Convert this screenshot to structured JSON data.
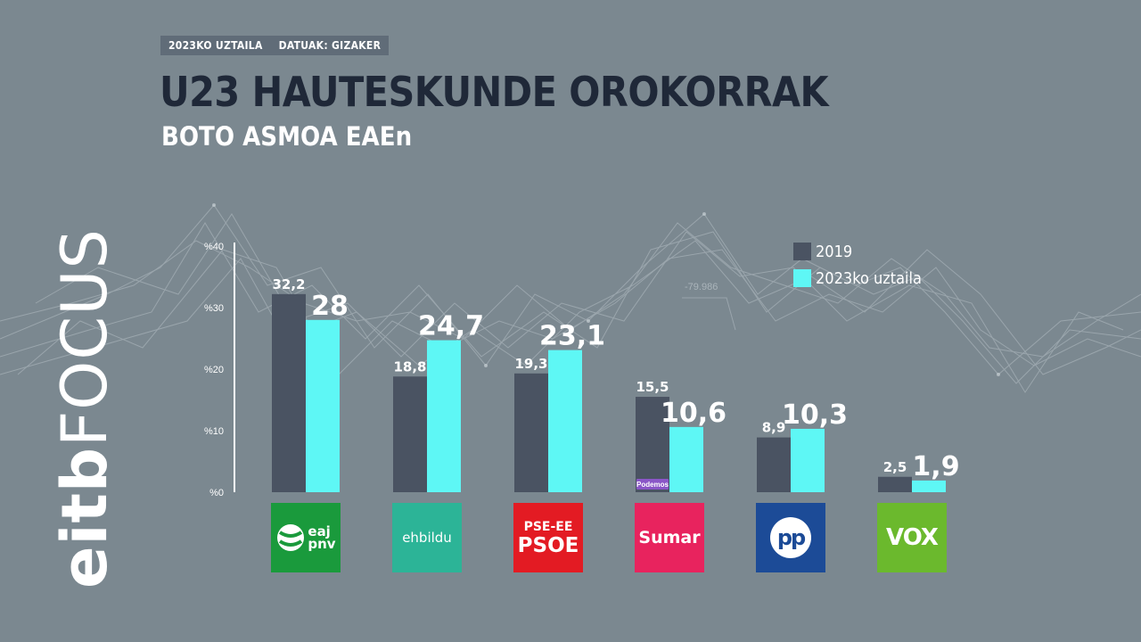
{
  "header": {
    "date_tag": "2023KO UZTAILA",
    "source_tag": "DATUAK: GIZAKER",
    "title": "U23 HAUTESKUNDE OROKORRAK",
    "subtitle": "BOTO ASMOA EAEn"
  },
  "brand": {
    "eitb": "eitb",
    "focus": "FOCUS"
  },
  "background_number": "-79.986",
  "colors": {
    "background": "#7b8890",
    "series_2019": "#4a5362",
    "series_2023": "#5ef7f5",
    "title": "#1f2838"
  },
  "chart_data": {
    "type": "bar",
    "categories": [
      "EAJ-PNV",
      "EH Bildu",
      "PSE-EE PSOE",
      "Sumar",
      "PP",
      "Vox"
    ],
    "series": [
      {
        "name": "2019",
        "values": [
          32.2,
          18.8,
          19.3,
          15.5,
          8.9,
          2.5
        ],
        "labels": [
          "32,2",
          "18,8",
          "19,3",
          "15,5",
          "8,9",
          "2,5"
        ],
        "color": "#4a5362"
      },
      {
        "name": "2023ko uztaila",
        "values": [
          28,
          24.7,
          23.1,
          10.6,
          10.3,
          1.9
        ],
        "labels": [
          "28",
          "24,7",
          "23,1",
          "10,6",
          "10,3",
          "1,9"
        ],
        "color": "#5ef7f5"
      }
    ],
    "yticks": [
      "%0",
      "%10",
      "%20",
      "%30",
      "%40"
    ],
    "ylim": [
      0,
      40
    ],
    "legend": "top-right",
    "annotation": "Podemos",
    "grid": false
  },
  "party_logos": [
    {
      "name": "pnv",
      "line1": "eaj",
      "line2": "pnv"
    },
    {
      "name": "bildu",
      "text": "ehbildu"
    },
    {
      "name": "psoe",
      "line1": "PSE-EE",
      "line2": "PSOE"
    },
    {
      "name": "sumar",
      "text": "Sumar"
    },
    {
      "name": "pp",
      "text": "pp"
    },
    {
      "name": "vox",
      "text": "VOX"
    }
  ]
}
